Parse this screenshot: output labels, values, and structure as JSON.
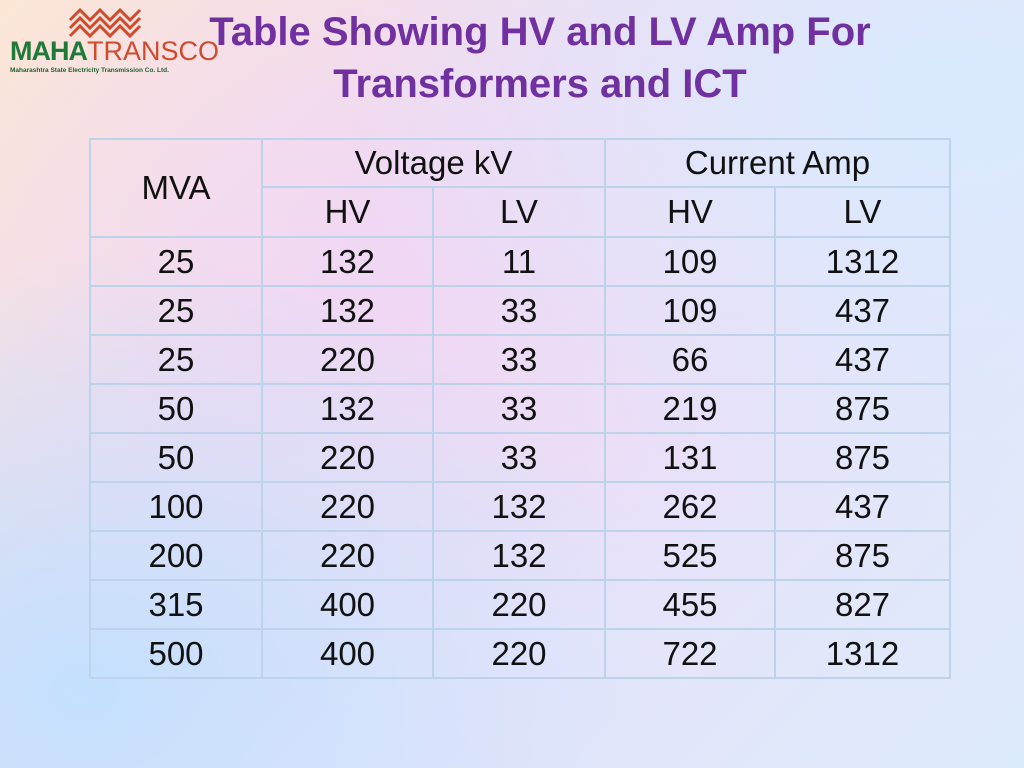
{
  "logo": {
    "brand_part1": "MAHA",
    "brand_part2": "TRANSCO",
    "tagline": "Maharashtra State Electricity Transmission Co. Ltd."
  },
  "title_line1": "Table Showing HV and LV Amp For",
  "title_line2": "Transformers and ICT",
  "table": {
    "mva_header": "MVA",
    "voltage_header": "Voltage kV",
    "current_header": "Current Amp",
    "sub_headers": [
      "HV",
      "LV",
      "HV",
      "LV"
    ],
    "rows": [
      [
        "25",
        "132",
        "11",
        "109",
        "1312"
      ],
      [
        "25",
        "132",
        "33",
        "109",
        "437"
      ],
      [
        "25",
        "220",
        "33",
        "66",
        "437"
      ],
      [
        "50",
        "132",
        "33",
        "219",
        "875"
      ],
      [
        "50",
        "220",
        "33",
        "131",
        "875"
      ],
      [
        "100",
        "220",
        "132",
        "262",
        "437"
      ],
      [
        "200",
        "220",
        "132",
        "525",
        "875"
      ],
      [
        "315",
        "400",
        "220",
        "455",
        "827"
      ],
      [
        "500",
        "400",
        "220",
        "722",
        "1312"
      ]
    ]
  },
  "colors": {
    "title": "#7030a0",
    "table_border": "#bcd3ea",
    "logo_green": "#1f7a3a",
    "logo_red": "#cf4b2c"
  }
}
